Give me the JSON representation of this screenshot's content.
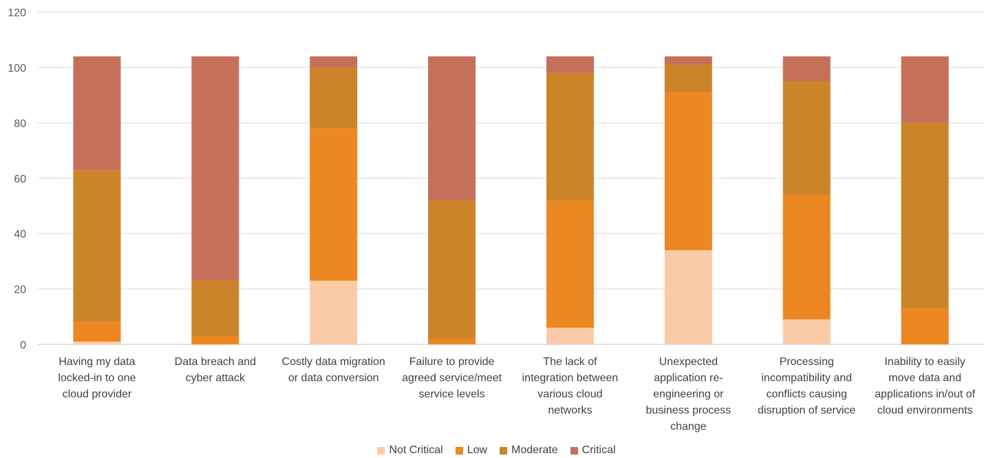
{
  "chart_data": {
    "type": "bar",
    "stacked": true,
    "categories": [
      [
        "Having my data",
        "locked-in to one",
        "cloud provider"
      ],
      [
        "Data breach and",
        "cyber attack"
      ],
      [
        "Costly data migration",
        "or data conversion"
      ],
      [
        "Failure to provide",
        "agreed service/meet",
        "service levels"
      ],
      [
        "The lack of",
        "integration between",
        "various cloud",
        "networks"
      ],
      [
        "Unexpected",
        "application re-",
        "engineering or",
        "business process",
        "change"
      ],
      [
        "Processing",
        "incompatibility and",
        "conflicts causing",
        "disruption of service"
      ],
      [
        "Inability to easily",
        "move data and",
        "applications in/out of",
        "cloud environments"
      ]
    ],
    "series": [
      {
        "name": "Not Critical",
        "color": "#FBCBA7",
        "values": [
          1,
          0,
          23,
          0,
          6,
          34,
          9,
          0
        ]
      },
      {
        "name": "Low",
        "color": "#EC8722",
        "values": [
          7,
          3,
          55,
          2,
          46,
          57,
          45,
          13
        ]
      },
      {
        "name": "Moderate",
        "color": "#CC842A",
        "values": [
          55,
          20,
          22,
          50,
          46,
          10,
          41,
          67
        ]
      },
      {
        "name": "Critical",
        "color": "#C6705A",
        "values": [
          41,
          81,
          4,
          52,
          6,
          3,
          9,
          24
        ]
      }
    ],
    "ylim": [
      0,
      120
    ],
    "yticks": [
      0,
      20,
      40,
      60,
      80,
      100,
      120
    ],
    "grid": true,
    "legend_position": "bottom"
  }
}
